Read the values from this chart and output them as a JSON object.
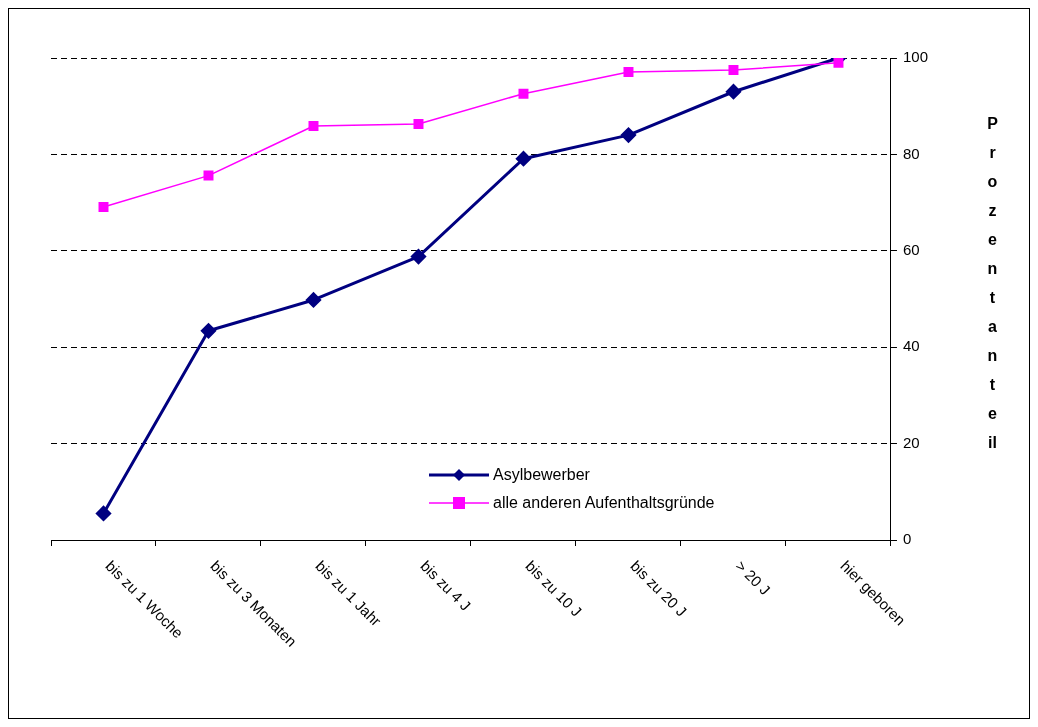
{
  "chart_data": {
    "type": "line",
    "ylabel": "Prozentanteil",
    "categories": [
      "bis zu 1 Woche",
      "bis zu 3 Monaten",
      "bis zu 1 Jahr",
      "bis zu 4 J",
      "bis zu 10 J",
      "bis zu 20 J",
      "> 20 J",
      "hier geboren"
    ],
    "series": [
      {
        "name": "Asylbewerber",
        "color": "#000080",
        "marker": "diamond",
        "values": [
          5.5,
          43.4,
          49.8,
          58.8,
          79.1,
          84.0,
          93.0,
          100
        ]
      },
      {
        "name": "alle anderen Aufenthaltsgründe",
        "color": "#ff00ff",
        "marker": "square",
        "values": [
          69.1,
          75.6,
          85.9,
          86.3,
          92.6,
          97.1,
          97.5,
          99.0
        ]
      }
    ],
    "ylim": [
      0,
      100
    ],
    "yticks": [
      0,
      20,
      40,
      60,
      80,
      100
    ],
    "grid": "y",
    "legend": "bottom",
    "line_style": "solid"
  }
}
